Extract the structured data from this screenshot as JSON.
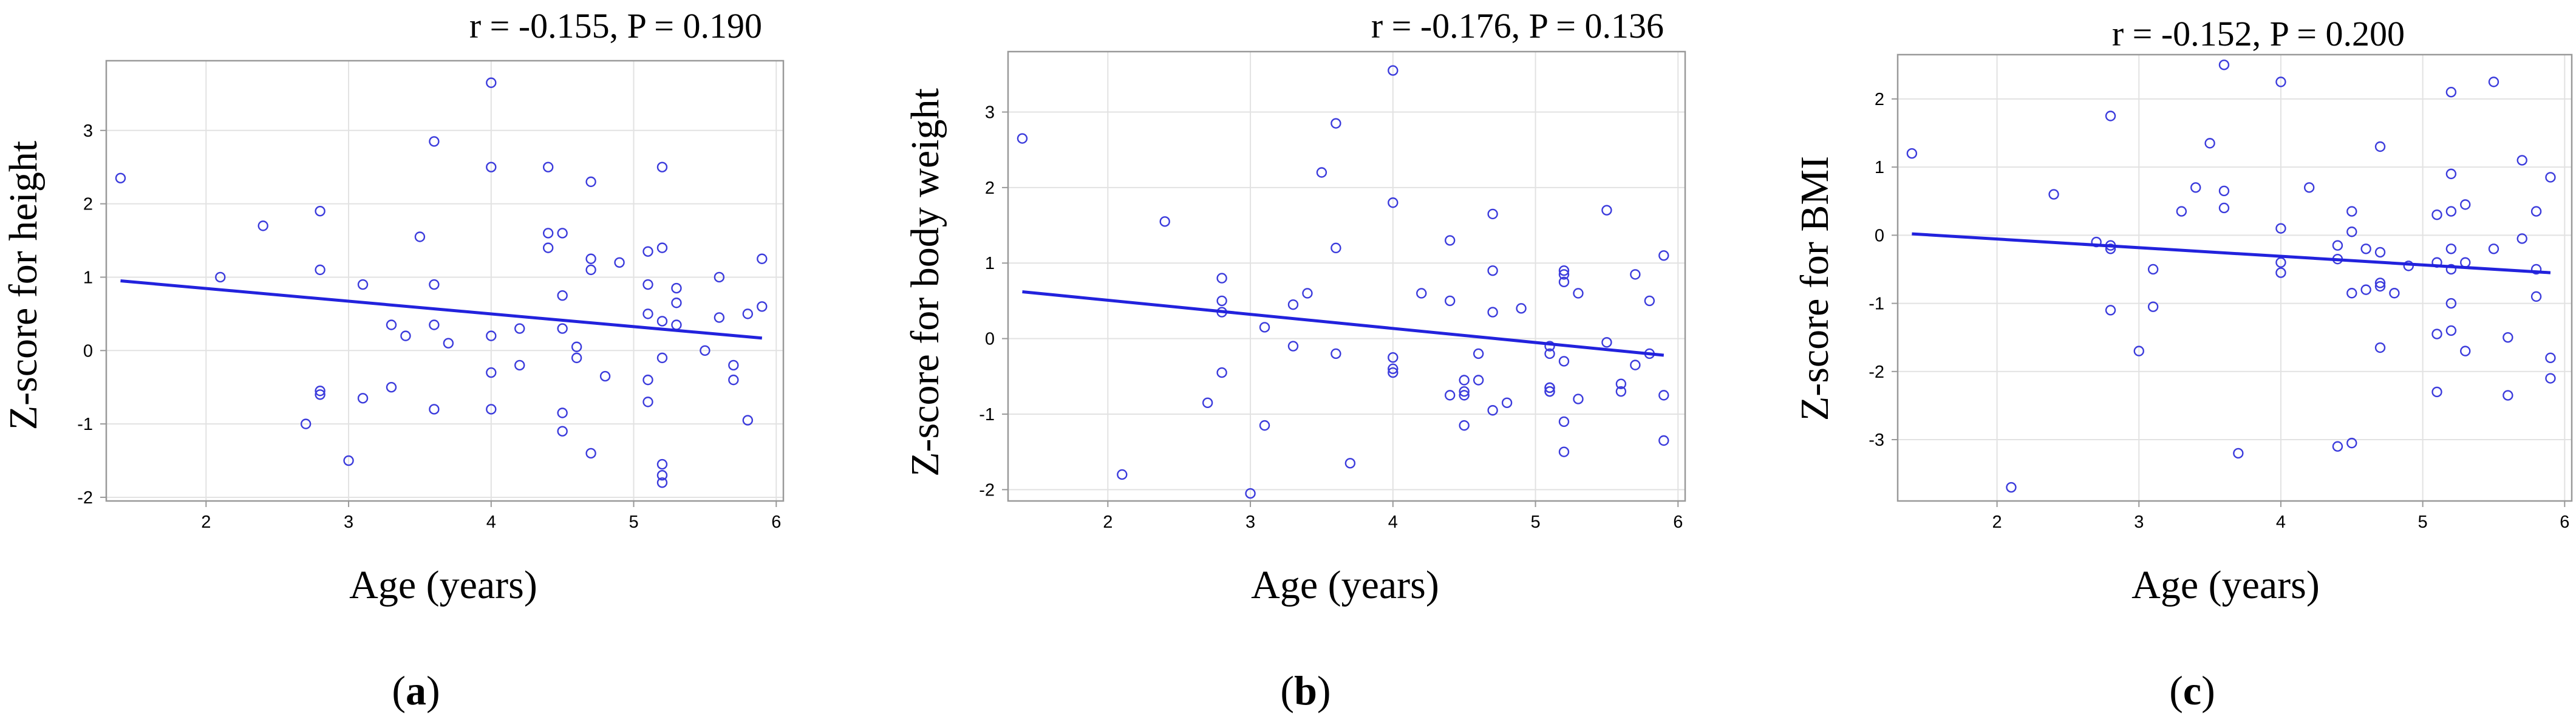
{
  "colors": {
    "points": "#3b3bdc",
    "fit_line": "#2222dd",
    "grid": "#e2e2e2",
    "frame": "#999999"
  },
  "panels": [
    {
      "label": "a",
      "stat": "r = -0.155, P = 0.190"
    },
    {
      "label": "b",
      "stat": "r = -0.176, P = 0.136"
    },
    {
      "label": "c",
      "stat": "r = -0.152, P = 0.200"
    }
  ],
  "chart_data": [
    {
      "type": "scatter",
      "title": "r = -0.155, P = 0.190",
      "xlabel": "Age (years)",
      "ylabel": "Z-score for height",
      "xlim": [
        1.3,
        6.05
      ],
      "ylim": [
        -2.05,
        3.95
      ],
      "xticks": [
        2,
        3,
        4,
        5,
        6
      ],
      "yticks": [
        -2,
        -1,
        0,
        1,
        2,
        3
      ],
      "grid": true,
      "fit_line": {
        "x": [
          1.4,
          5.9
        ],
        "y": [
          0.95,
          0.17
        ]
      },
      "x": [
        1.4,
        2.1,
        2.4,
        2.7,
        2.8,
        2.8,
        2.8,
        2.8,
        3.0,
        3.1,
        3.1,
        3.3,
        3.3,
        3.4,
        3.5,
        3.6,
        3.6,
        3.6,
        3.6,
        3.7,
        4.0,
        4.0,
        4.0,
        4.0,
        4.0,
        4.2,
        4.2,
        4.4,
        4.4,
        4.4,
        4.5,
        4.5,
        4.5,
        4.5,
        4.5,
        4.6,
        4.6,
        4.7,
        4.7,
        4.7,
        4.7,
        4.8,
        4.9,
        5.1,
        5.1,
        5.1,
        5.1,
        5.1,
        5.2,
        5.2,
        5.2,
        5.2,
        5.2,
        5.2,
        5.2,
        5.3,
        5.3,
        5.3,
        5.5,
        5.6,
        5.6,
        5.7,
        5.7,
        5.8,
        5.8,
        5.9,
        5.9
      ],
      "y": [
        2.35,
        1.0,
        1.7,
        -1.0,
        1.9,
        1.1,
        -0.55,
        -0.6,
        -1.5,
        0.9,
        -0.65,
        0.35,
        -0.5,
        0.2,
        1.55,
        2.85,
        0.9,
        0.35,
        -0.8,
        0.1,
        3.65,
        2.5,
        0.2,
        -0.3,
        -0.8,
        0.3,
        -0.2,
        2.5,
        1.6,
        1.4,
        1.6,
        0.75,
        0.3,
        -0.85,
        -1.1,
        0.05,
        -0.1,
        2.3,
        1.25,
        1.1,
        -1.4,
        -0.35,
        1.2,
        1.35,
        0.9,
        0.5,
        -0.4,
        -0.7,
        2.5,
        1.4,
        0.4,
        -0.1,
        -1.55,
        -1.7,
        -1.8,
        0.85,
        0.65,
        0.35,
        0.0,
        1.0,
        0.45,
        -0.2,
        -0.4,
        0.5,
        -0.95,
        1.25,
        0.6
      ]
    },
    {
      "type": "scatter",
      "title": "r = -0.176, P = 0.136",
      "xlabel": "Age (years)",
      "ylabel": "Z-score for body weight",
      "xlim": [
        1.3,
        6.05
      ],
      "ylim": [
        -2.15,
        3.8
      ],
      "xticks": [
        2,
        3,
        4,
        5,
        6
      ],
      "yticks": [
        -2,
        -1,
        0,
        1,
        2,
        3
      ],
      "grid": true,
      "fit_line": {
        "x": [
          1.4,
          5.9
        ],
        "y": [
          0.62,
          -0.22
        ]
      },
      "x": [
        1.4,
        2.1,
        2.4,
        2.7,
        2.8,
        2.8,
        2.8,
        2.8,
        3.0,
        3.1,
        3.1,
        3.3,
        3.3,
        3.4,
        3.5,
        3.6,
        3.6,
        3.6,
        3.7,
        4.0,
        4.0,
        4.0,
        4.0,
        4.0,
        4.2,
        4.4,
        4.4,
        4.4,
        4.5,
        4.5,
        4.5,
        4.5,
        4.6,
        4.6,
        4.7,
        4.7,
        4.7,
        4.7,
        4.8,
        4.9,
        5.1,
        5.1,
        5.1,
        5.1,
        5.1,
        5.1,
        5.2,
        5.2,
        5.2,
        5.2,
        5.2,
        5.2,
        5.3,
        5.3,
        5.5,
        5.5,
        5.6,
        5.6,
        5.7,
        5.7,
        5.8,
        5.8,
        5.9,
        5.9,
        5.9
      ],
      "y": [
        2.65,
        -1.8,
        1.55,
        -0.85,
        0.8,
        0.5,
        0.35,
        -0.45,
        -2.05,
        0.15,
        -1.15,
        0.45,
        -0.1,
        0.6,
        2.2,
        2.85,
        1.2,
        -0.2,
        -1.65,
        3.55,
        1.8,
        -0.25,
        -0.4,
        -0.45,
        0.6,
        1.3,
        0.5,
        -0.75,
        -0.55,
        -0.7,
        -0.75,
        -1.15,
        -0.2,
        -0.55,
        1.65,
        0.9,
        0.35,
        -0.95,
        -0.85,
        0.4,
        -0.1,
        -0.2,
        -0.65,
        -0.7,
        -0.7,
        -0.65,
        0.9,
        0.85,
        0.75,
        -0.3,
        -1.1,
        -1.5,
        0.6,
        -0.8,
        1.7,
        -0.05,
        -0.6,
        -0.7,
        0.85,
        -0.35,
        0.5,
        -0.2,
        1.1,
        -0.75,
        -1.35
      ]
    },
    {
      "type": "scatter",
      "title": "r = -0.152, P = 0.200",
      "xlabel": "Age (years)",
      "ylabel": "Z-score for BMI",
      "xlim": [
        1.3,
        6.05
      ],
      "ylim": [
        -3.9,
        2.65
      ],
      "xticks": [
        2,
        3,
        4,
        5,
        6
      ],
      "yticks": [
        -3,
        -2,
        -1,
        0,
        1,
        2
      ],
      "grid": true,
      "fit_line": {
        "x": [
          1.4,
          5.9
        ],
        "y": [
          0.02,
          -0.55
        ]
      },
      "x": [
        1.4,
        2.1,
        2.4,
        2.7,
        2.8,
        2.8,
        2.8,
        2.8,
        3.0,
        3.1,
        3.1,
        3.3,
        3.4,
        3.5,
        3.6,
        3.6,
        3.6,
        3.7,
        4.0,
        4.0,
        4.0,
        4.0,
        4.2,
        4.4,
        4.4,
        4.4,
        4.5,
        4.5,
        4.5,
        4.5,
        4.6,
        4.6,
        4.7,
        4.7,
        4.7,
        4.7,
        4.7,
        4.8,
        4.9,
        5.1,
        5.1,
        5.1,
        5.1,
        5.2,
        5.2,
        5.2,
        5.2,
        5.2,
        5.2,
        5.2,
        5.3,
        5.3,
        5.3,
        5.5,
        5.5,
        5.6,
        5.6,
        5.7,
        5.7,
        5.8,
        5.8,
        5.8,
        5.9,
        5.9,
        5.9
      ],
      "y": [
        1.2,
        -3.7,
        0.6,
        -0.1,
        1.75,
        -0.15,
        -0.2,
        -1.1,
        -1.7,
        -0.5,
        -1.05,
        0.35,
        0.7,
        1.35,
        2.5,
        0.65,
        0.4,
        -3.2,
        2.25,
        0.1,
        -0.4,
        -0.55,
        0.7,
        -3.1,
        -0.15,
        -0.35,
        0.35,
        0.05,
        -0.85,
        -3.05,
        -0.2,
        -0.8,
        1.3,
        -0.25,
        -0.7,
        -0.75,
        -1.65,
        -0.85,
        -0.45,
        0.3,
        -0.4,
        -1.45,
        -2.3,
        2.1,
        0.9,
        0.35,
        -0.2,
        -0.5,
        -1.0,
        -1.4,
        0.45,
        -0.4,
        -1.7,
        2.25,
        -0.2,
        -1.5,
        -2.35,
        1.1,
        -0.05,
        0.35,
        -0.5,
        -0.9,
        0.85,
        -1.8,
        -2.1
      ]
    }
  ]
}
